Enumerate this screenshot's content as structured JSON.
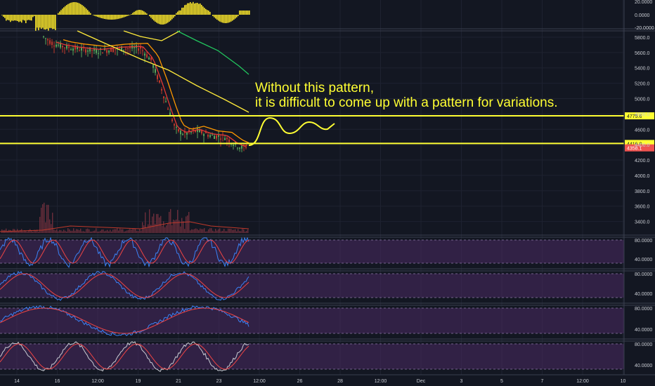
{
  "chart_data": {
    "type": "line",
    "title": "",
    "annotation_lines": [
      "Without this pattern,",
      "it is difficult to come up with a pattern for variations."
    ],
    "x_tick_labels": [
      "14",
      "16",
      "12:00",
      "19",
      "21",
      "23",
      "12:00",
      "26",
      "28",
      "12:00",
      "Dec",
      "3",
      "5",
      "7",
      "12:00",
      "10"
    ],
    "price_axis": {
      "ticks": [
        "5800.0",
        "5600.0",
        "5400.0",
        "5200.0",
        "5000.0",
        "4800.0",
        "4600.0",
        "4400.0",
        "4200.0",
        "4000.0",
        "3800.0",
        "3600.0",
        "3400.0"
      ],
      "ylim": [
        3250,
        5900
      ]
    },
    "oscillator_axis": {
      "ticks": [
        "20.0000",
        "0.0000",
        "-20.0000"
      ]
    },
    "horizontal_levels": [
      {
        "value": 4775.6,
        "label": "4775.6",
        "color": "#ffff33"
      },
      {
        "value": 4416.0,
        "label": "4416.0",
        "color": "#ffff33"
      }
    ],
    "last_price": {
      "value": 4358.1,
      "label": "4358.1",
      "color": "#ef5350"
    },
    "stoch_panels": [
      {
        "ticks": [
          "80.0000",
          "40.0000"
        ]
      },
      {
        "ticks": [
          "80.0000",
          "40.0000"
        ]
      },
      {
        "ticks": [
          "80.0000",
          "40.0000"
        ]
      },
      {
        "ticks": [
          "80.0000",
          "40.0000"
        ]
      }
    ],
    "colors": {
      "background": "#131722",
      "annotation": "#ffff33",
      "ma_fast": "#e53935",
      "ma_slow": "#ff9800",
      "ma_long": "#ffeb3b",
      "ma_trend": "#22c55e",
      "stoch_k": "#3b82f6",
      "stoch_d": "#ef4444",
      "panel_fill": "#4a2a63"
    }
  }
}
